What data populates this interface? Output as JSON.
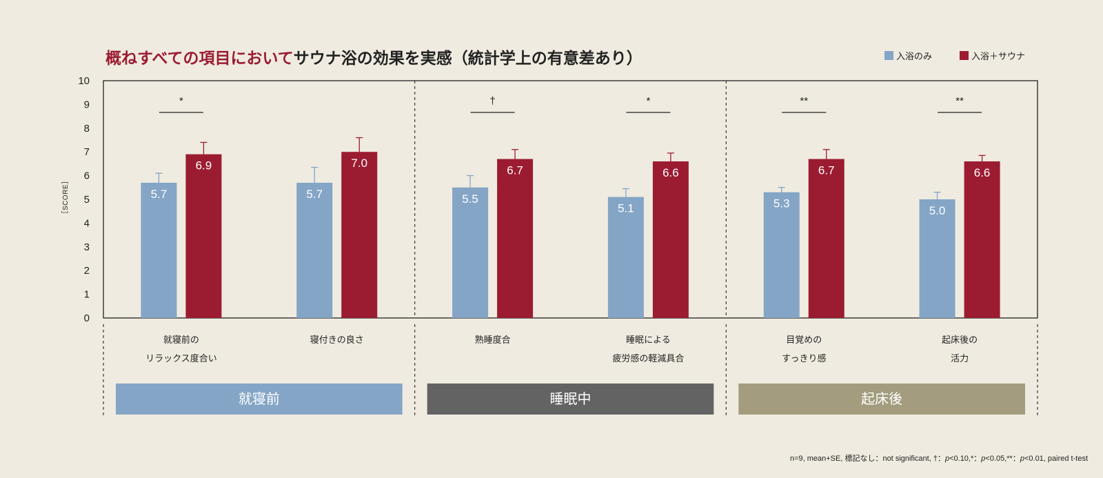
{
  "colors": {
    "background": "#EFEBE0",
    "bath_only": "#84A5C6",
    "bath_sauna": "#9B1C31",
    "accent_title": "#9B1C31",
    "phase_before": "#84A5C6",
    "phase_during": "#636363",
    "phase_after": "#A39C7E"
  },
  "title": {
    "accent": "概ねすべての項目において",
    "main": "サウナ浴の効果を実感（統計学上の有意差あり）"
  },
  "footnote": {
    "prefix": "n=9, mean+SE, 標記なし：not significant, †：",
    "p1": "p",
    "t1": "<0.10,*：",
    "p2": "p",
    "t2": "<0.05,**：",
    "p3": "p",
    "t3": "<0.01, paired t-test"
  },
  "chart_data": {
    "type": "bar",
    "ylabel": "［SCORE］",
    "ylim": [
      0,
      10
    ],
    "yticks": [
      0,
      1,
      2,
      3,
      4,
      5,
      6,
      7,
      8,
      9,
      10
    ],
    "legend": {
      "placement": "top-right"
    },
    "series": [
      {
        "name": "入浴のみ",
        "color": "#84A5C6",
        "values": [
          5.7,
          5.7,
          5.5,
          5.1,
          5.3,
          5.0
        ],
        "labels": [
          "5.7",
          "5.7",
          "5.5",
          "5.1",
          "5.3",
          "5.0"
        ],
        "se": [
          0.4,
          0.65,
          0.5,
          0.35,
          0.2,
          0.3
        ]
      },
      {
        "name": "入浴＋サウナ",
        "color": "#9B1C31",
        "values": [
          6.9,
          7.0,
          6.7,
          6.6,
          6.7,
          6.6
        ],
        "labels": [
          "6.9",
          "7.0",
          "6.7",
          "6.6",
          "6.7",
          "6.6"
        ],
        "se": [
          0.5,
          0.6,
          0.4,
          0.35,
          0.4,
          0.25
        ]
      }
    ],
    "categories": [
      {
        "lines": [
          "就寝前の",
          "リラックス度合い"
        ],
        "sig": "*"
      },
      {
        "lines": [
          "寝付きの良さ"
        ],
        "sig": ""
      },
      {
        "lines": [
          "熟睡度合"
        ],
        "sig": "†"
      },
      {
        "lines": [
          "睡眠による",
          "疲労感の軽減具合"
        ],
        "sig": "*"
      },
      {
        "lines": [
          "目覚めの",
          "すっきり感"
        ],
        "sig": "**"
      },
      {
        "lines": [
          "起床後の",
          "活力"
        ],
        "sig": "**"
      }
    ],
    "phases": [
      {
        "label": "就寝前",
        "color": "#84A5C6"
      },
      {
        "label": "睡眠中",
        "color": "#636363"
      },
      {
        "label": "起床後",
        "color": "#A39C7E"
      }
    ]
  }
}
